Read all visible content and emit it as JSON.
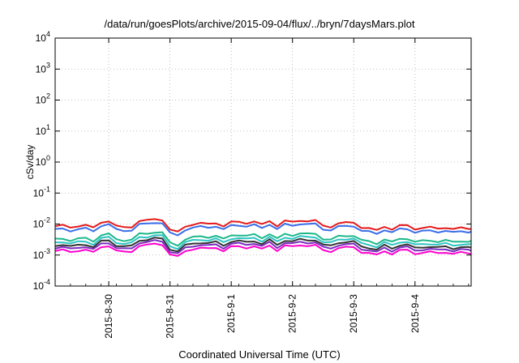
{
  "chart_data": {
    "type": "line",
    "title": "/data/run/goesPlots/archive/2015-09-04/flux/../bryn/7daysMars.plot",
    "xlabel": "Coordinated Universal Time (UTC)",
    "ylabel": "cSv/day",
    "yscale": "log",
    "ylim": [
      0.0001,
      10000
    ],
    "yticks": [
      {
        "value": 0.0001,
        "base": "10",
        "exp": "-4"
      },
      {
        "value": 0.001,
        "base": "10",
        "exp": "-3"
      },
      {
        "value": 0.01,
        "base": "10",
        "exp": "-2"
      },
      {
        "value": 0.1,
        "base": "10",
        "exp": "-1"
      },
      {
        "value": 1,
        "base": "10",
        "exp": "0"
      },
      {
        "value": 10,
        "base": "10",
        "exp": "1"
      },
      {
        "value": 100,
        "base": "10",
        "exp": "2"
      },
      {
        "value": 1000,
        "base": "10",
        "exp": "3"
      },
      {
        "value": 10000,
        "base": "10",
        "exp": "4"
      }
    ],
    "xlim": [
      "2015-08-29 03:00",
      "2015-09-04 22:00"
    ],
    "xticks": [
      "2015-8-30",
      "2015-8-31",
      "2015-9-1",
      "2015-9-2",
      "2015-9-3",
      "2015-9-4"
    ],
    "grid": true,
    "legend": "none",
    "x": [
      "2015-08-29 03:00",
      "2015-08-29 06:00",
      "2015-08-29 09:00",
      "2015-08-29 12:00",
      "2015-08-29 15:00",
      "2015-08-29 18:00",
      "2015-08-29 21:00",
      "2015-08-30 00:00",
      "2015-08-30 03:00",
      "2015-08-30 06:00",
      "2015-08-30 09:00",
      "2015-08-30 12:00",
      "2015-08-30 15:00",
      "2015-08-30 18:00",
      "2015-08-30 21:00",
      "2015-08-31 00:00",
      "2015-08-31 03:00",
      "2015-08-31 06:00",
      "2015-08-31 09:00",
      "2015-08-31 12:00",
      "2015-08-31 15:00",
      "2015-08-31 18:00",
      "2015-08-31 21:00",
      "2015-09-01 00:00",
      "2015-09-01 03:00",
      "2015-09-01 06:00",
      "2015-09-01 09:00",
      "2015-09-01 12:00",
      "2015-09-01 15:00",
      "2015-09-01 18:00",
      "2015-09-01 21:00",
      "2015-09-02 00:00",
      "2015-09-02 03:00",
      "2015-09-02 06:00",
      "2015-09-02 09:00",
      "2015-09-02 12:00",
      "2015-09-02 15:00",
      "2015-09-02 18:00",
      "2015-09-02 21:00",
      "2015-09-03 00:00",
      "2015-09-03 03:00",
      "2015-09-03 06:00",
      "2015-09-03 09:00",
      "2015-09-03 12:00",
      "2015-09-03 15:00",
      "2015-09-03 18:00",
      "2015-09-03 21:00",
      "2015-09-04 00:00",
      "2015-09-04 03:00",
      "2015-09-04 06:00",
      "2015-09-04 09:00",
      "2015-09-04 12:00",
      "2015-09-04 15:00",
      "2015-09-04 18:00",
      "2015-09-04 21:00",
      "2015-09-04 22:00"
    ],
    "base_series": [
      0.0085,
      0.009,
      0.0078,
      0.0088,
      0.0092,
      0.0075,
      0.0115,
      0.0125,
      0.0085,
      0.0078,
      0.0082,
      0.0125,
      0.013,
      0.0145,
      0.0138,
      0.0065,
      0.0055,
      0.0085,
      0.0098,
      0.0105,
      0.01,
      0.011,
      0.0085,
      0.0115,
      0.0118,
      0.0108,
      0.012,
      0.0095,
      0.0128,
      0.0088,
      0.0125,
      0.0115,
      0.0132,
      0.0125,
      0.0128,
      0.0088,
      0.0082,
      0.0105,
      0.011,
      0.0112,
      0.0078,
      0.0072,
      0.0062,
      0.0085,
      0.0068,
      0.0088,
      0.009,
      0.007,
      0.0075,
      0.0078,
      0.0072,
      0.0078,
      0.0068,
      0.0075,
      0.0072,
      0.0072
    ],
    "series": [
      {
        "color": "#e41a1c",
        "factor": 1.0
      },
      {
        "color": "#3a6ee8",
        "factor": 0.78
      },
      {
        "color": "#1db88a",
        "factor": 0.38
      },
      {
        "color": "#2ec4c4",
        "factor": 0.3
      },
      {
        "color": "#333333",
        "factor": 0.24
      },
      {
        "color": "#7b2cbf",
        "factor": 0.2
      },
      {
        "color": "#ff00cc",
        "factor": 0.16
      }
    ]
  }
}
